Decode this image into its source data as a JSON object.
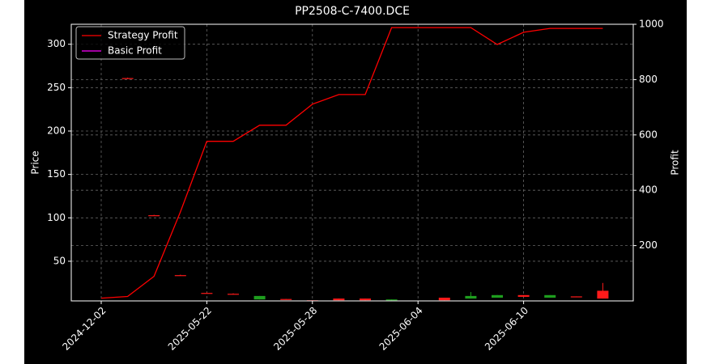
{
  "chart_data": {
    "type": "candlestick",
    "title": "PP2508-C-7400.DCE",
    "y_label": "Price",
    "y2_label": "Profit",
    "categories": [
      "2024-12-02",
      null,
      null,
      null,
      "2025-05-22",
      null,
      null,
      null,
      "2025-05-28",
      null,
      null,
      null,
      "2025-06-04",
      null,
      null,
      null,
      "2025-06-10",
      null,
      null,
      null
    ],
    "candles": {
      "open": [
        null,
        261,
        103,
        34,
        13.5,
        12.5,
        10,
        5.5,
        4.5,
        5,
        5,
        6,
        null,
        5,
        10,
        11,
        9,
        11,
        9,
        7
      ],
      "high": [
        null,
        261.5,
        103.5,
        34.5,
        14,
        13,
        10,
        6.5,
        5,
        7,
        7,
        6,
        null,
        8,
        14.5,
        11,
        11,
        11,
        9.5,
        25
      ],
      "low": [
        null,
        260.5,
        102.5,
        33.5,
        13,
        12,
        6,
        5.5,
        4.5,
        5,
        5,
        5,
        null,
        5,
        7,
        8,
        9,
        8,
        9,
        7
      ],
      "close": [
        null,
        261,
        103,
        34,
        13.5,
        12.5,
        6,
        6.5,
        5,
        7,
        7,
        5,
        null,
        8,
        7,
        8,
        11,
        8,
        9.5,
        16
      ],
      "up_color": "#ff1a1a",
      "down_color": "#1e9e1e"
    },
    "series": [
      {
        "name": "Strategy Profit",
        "color": "#ff0000",
        "axis": "y2",
        "values": [
          10,
          16,
          89,
          322,
          577,
          577,
          635,
          635,
          711,
          746,
          746,
          988,
          988,
          988,
          988,
          927,
          971,
          985,
          985,
          985
        ]
      },
      {
        "name": "Basic Profit",
        "color": "#ff00ff",
        "axis": "y2",
        "values": [
          null,
          null,
          null,
          null,
          null,
          null,
          null,
          null,
          null,
          null,
          null,
          null,
          null,
          null,
          null,
          null,
          null,
          null,
          null,
          null
        ]
      }
    ],
    "ylim": [
      4.3,
      323
    ],
    "yticks": [
      50,
      100,
      150,
      200,
      250,
      300
    ],
    "y2lim": [
      0,
      1000
    ],
    "y2ticks": [
      200,
      400,
      600,
      800,
      1000
    ],
    "grid": true,
    "legend": "upper-left"
  }
}
